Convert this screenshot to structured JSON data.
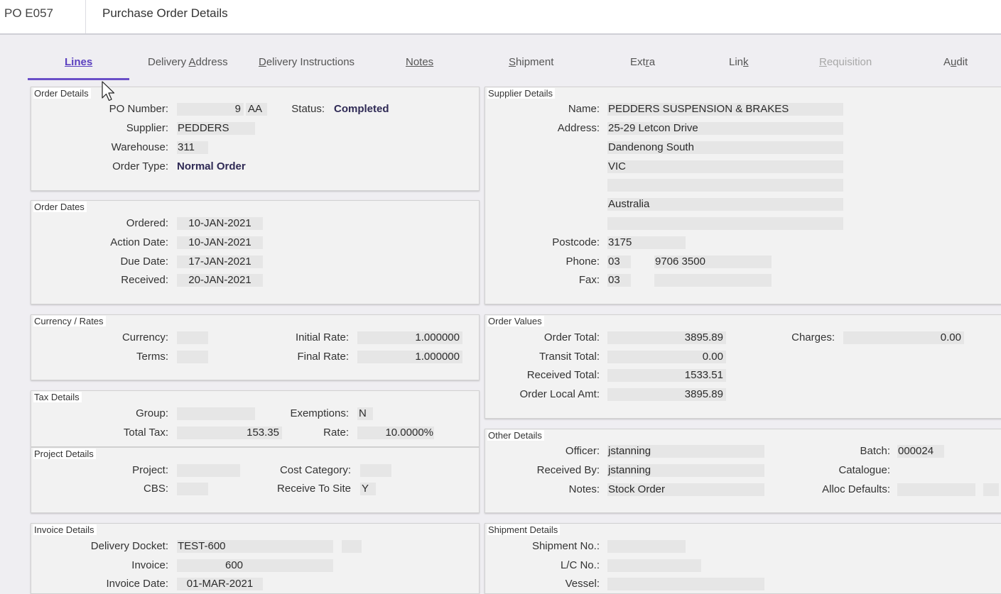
{
  "header": {
    "po_id": "PO E057",
    "title": "Purchase Order Details"
  },
  "tabs": [
    {
      "pre": "",
      "u": "Lines",
      "post": ""
    },
    {
      "pre": "Delivery ",
      "u": "A",
      "post": "ddress"
    },
    {
      "pre": "",
      "u": "D",
      "post": "elivery Instructions"
    },
    {
      "pre": "",
      "u": "Notes",
      "post": ""
    },
    {
      "pre": "",
      "u": "S",
      "post": "hipment"
    },
    {
      "pre": "Ext",
      "u": "r",
      "post": "a"
    },
    {
      "pre": "Lin",
      "u": "k",
      "post": ""
    },
    {
      "pre": "",
      "u": "R",
      "post": "equisition"
    },
    {
      "pre": "A",
      "u": "u",
      "post": "dit"
    }
  ],
  "order_details": {
    "legend": "Order Details",
    "po_number_label": "PO Number:",
    "po_number": "9",
    "po_suffix": "AA",
    "status_label": "Status:",
    "status": "Completed",
    "supplier_label": "Supplier:",
    "supplier": "PEDDERS",
    "warehouse_label": "Warehouse:",
    "warehouse": "311",
    "order_type_label": "Order Type:",
    "order_type": "Normal Order"
  },
  "order_dates": {
    "legend": "Order Dates",
    "ordered_label": "Ordered:",
    "ordered": "10-JAN-2021",
    "action_label": "Action Date:",
    "action": "10-JAN-2021",
    "due_label": "Due Date:",
    "due": "17-JAN-2021",
    "received_label": "Received:",
    "received": "20-JAN-2021"
  },
  "currency": {
    "legend": "Currency / Rates",
    "currency_label": "Currency:",
    "currency": "",
    "terms_label": "Terms:",
    "terms": "",
    "initial_rate_label": "Initial Rate:",
    "initial_rate": "1.000000",
    "final_rate_label": "Final Rate:",
    "final_rate": "1.000000"
  },
  "tax": {
    "legend": "Tax Details",
    "group_label": "Group:",
    "group": "",
    "total_tax_label": "Total Tax:",
    "total_tax": "153.35",
    "exemptions_label": "Exemptions:",
    "exemptions": "N",
    "rate_label": "Rate:",
    "rate": "10.0000%"
  },
  "project": {
    "legend": "Project Details",
    "project_label": "Project:",
    "project": "",
    "cbs_label": "CBS:",
    "cbs": "",
    "cost_category_label": "Cost Category:",
    "cost_category": "",
    "receive_to_site_label": "Receive To Site",
    "receive_to_site": "Y"
  },
  "invoice": {
    "legend": "Invoice Details",
    "docket_label": "Delivery Docket:",
    "docket": "TEST-600",
    "invoice_label": "Invoice:",
    "invoice": "600",
    "invoice_date_label": "Invoice Date:",
    "invoice_date": "01-MAR-2021"
  },
  "supplier": {
    "legend": "Supplier Details",
    "name_label": "Name:",
    "name": "PEDDERS SUSPENSION & BRAKES",
    "address_label": "Address:",
    "address": [
      "25-29 Letcon Drive",
      "Dandenong South",
      "VIC",
      "",
      "Australia",
      ""
    ],
    "postcode_label": "Postcode:",
    "postcode": "3175",
    "phone_label": "Phone:",
    "phone_area": "03",
    "phone": "9706 3500",
    "fax_label": "Fax:",
    "fax_area": "03",
    "fax": ""
  },
  "order_values": {
    "legend": "Order Values",
    "order_total_label": "Order Total:",
    "order_total": "3895.89",
    "transit_total_label": "Transit Total:",
    "transit_total": "0.00",
    "received_total_label": "Received Total:",
    "received_total": "1533.51",
    "local_amt_label": "Order Local Amt:",
    "local_amt": "3895.89",
    "charges_label": "Charges:",
    "charges": "0.00"
  },
  "other": {
    "legend": "Other Details",
    "officer_label": "Officer:",
    "officer": "jstanning",
    "received_by_label": "Received By:",
    "received_by": "jstanning",
    "notes_label": "Notes:",
    "notes": "Stock Order",
    "batch_label": "Batch:",
    "batch": "000024",
    "catalogue_label": "Catalogue:",
    "alloc_label": "Alloc Defaults:"
  },
  "shipment": {
    "legend": "Shipment Details",
    "shipment_no_label": "Shipment No.:",
    "lc_no_label": "L/C No.:",
    "vessel_label": "Vessel:"
  }
}
